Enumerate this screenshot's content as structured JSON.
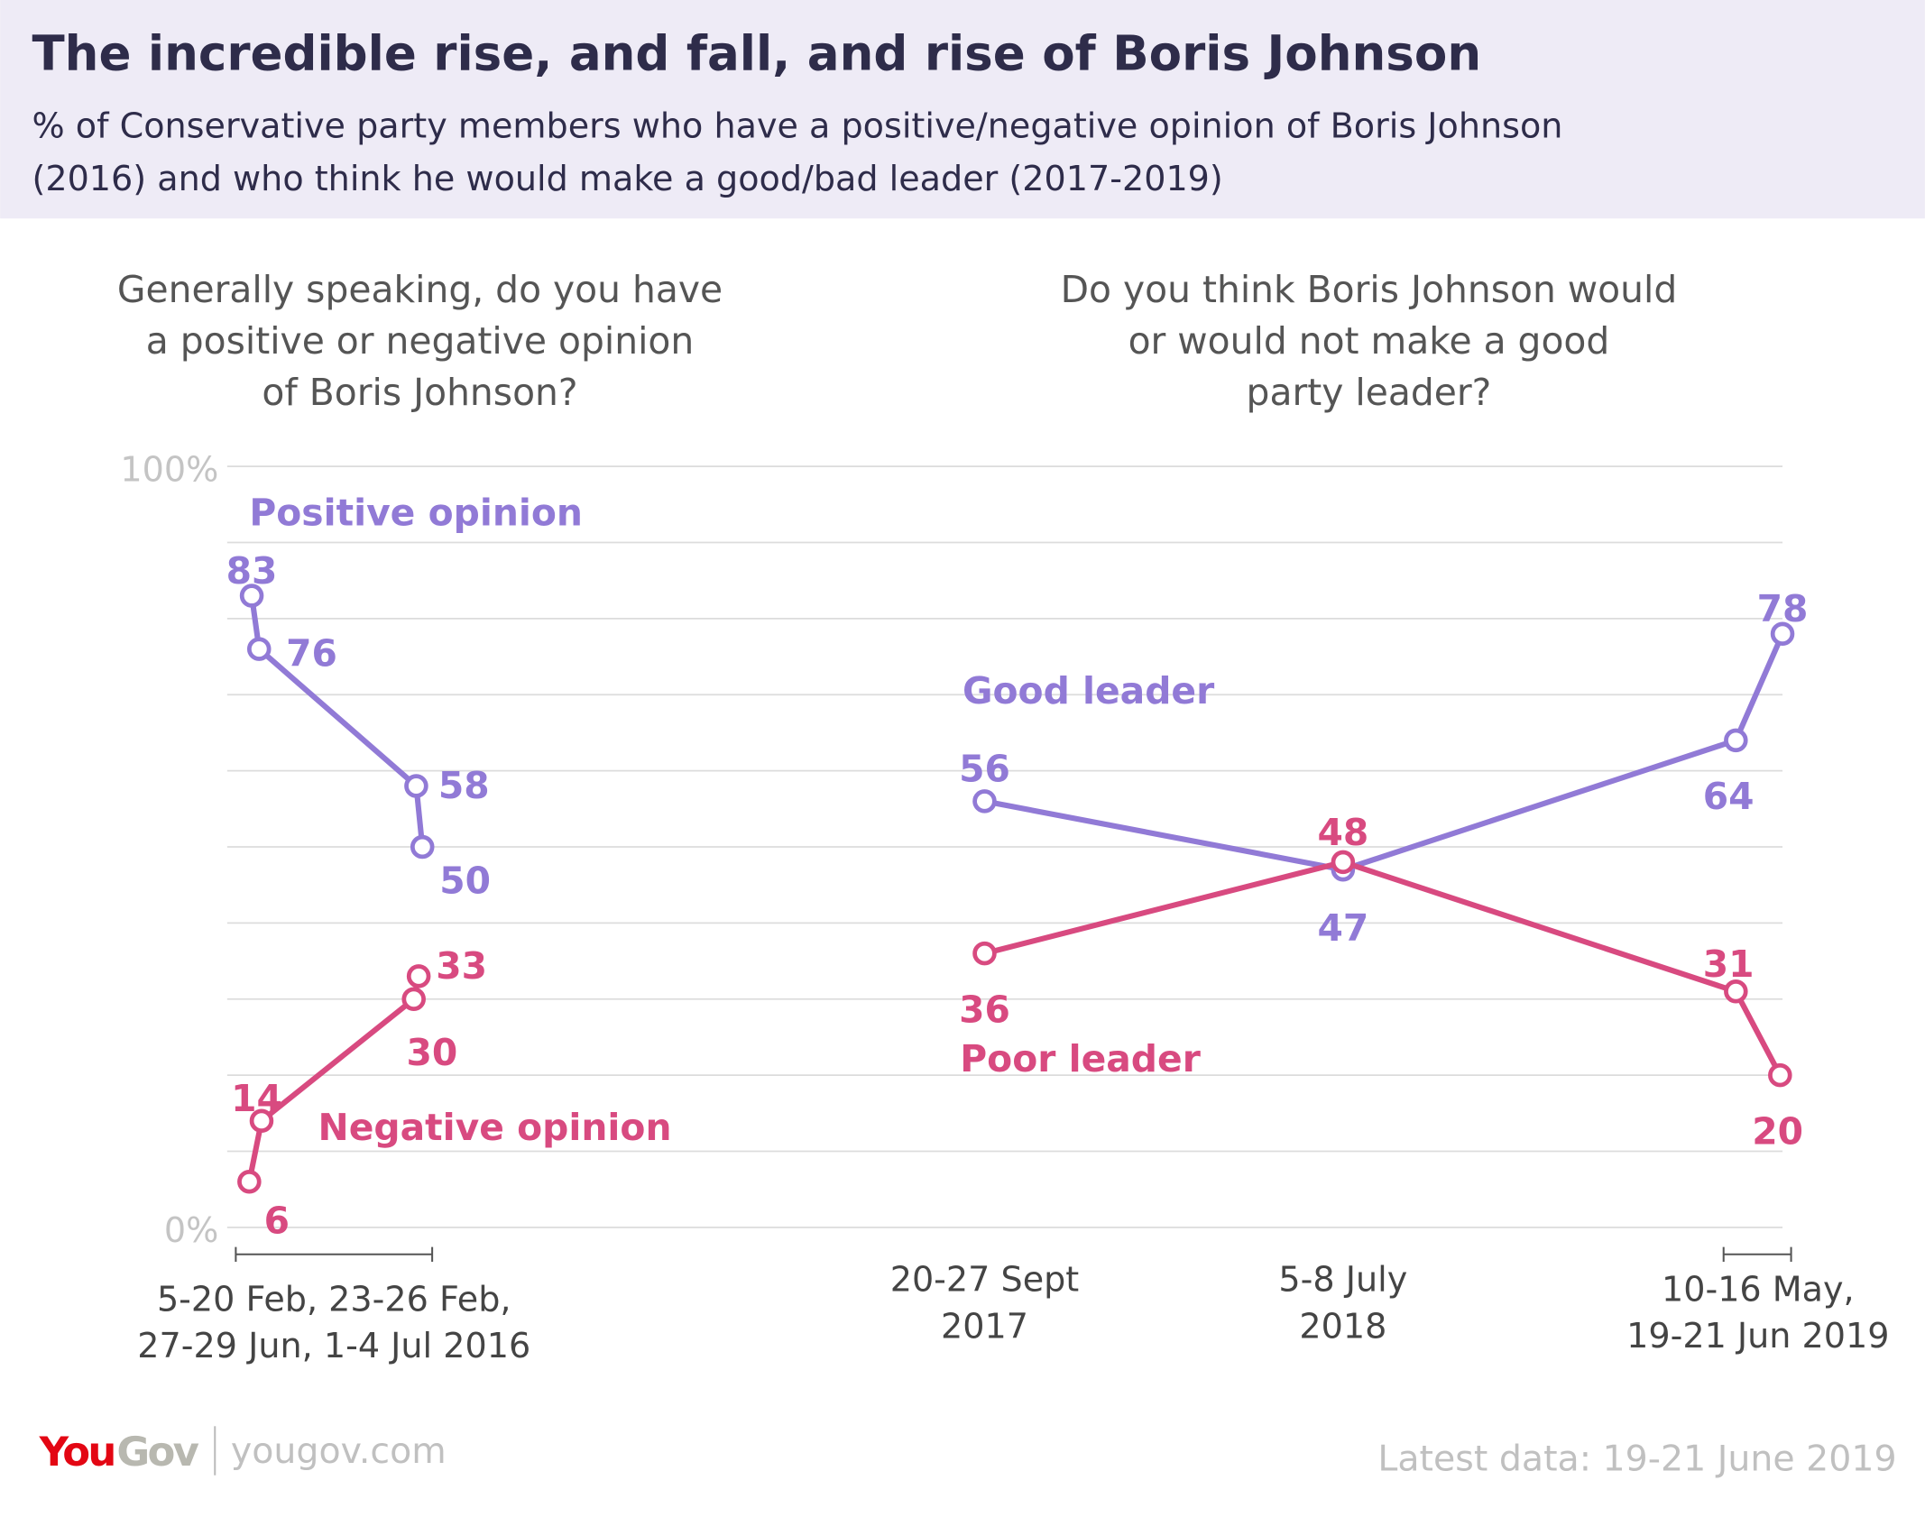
{
  "title": "The incredible rise, and fall, and rise of Boris Johnson",
  "subtitle": [
    "% of Conservative party members who have a positive/negative opinion of Boris Johnson",
    "(2016) and who think he would make a good/bad leader (2017-2019)"
  ],
  "colors": {
    "purple": "#917ad6",
    "pink": "#d84a80",
    "header_bg": "#eeebf6",
    "title": "#2e2c4a"
  },
  "footer": {
    "logo": "YouGov",
    "url": "yougov.com",
    "latest": "Latest data: 19-21 June 2019"
  },
  "chart_data": [
    {
      "type": "line",
      "question": [
        "Generally speaking, do you have",
        "a positive or negative opinion",
        "of Boris Johnson?"
      ],
      "ylim": [
        0,
        100
      ],
      "yticks": [
        "0%",
        "100%"
      ],
      "grid": true,
      "x_label": [
        "5-20 Feb, 23-26 Feb,",
        "27-29 Jun, 1-4 Jul 2016"
      ],
      "x": [
        "5-20 Feb 2016",
        "23-26 Feb 2016",
        "27-29 Jun 2016",
        "1-4 Jul 2016"
      ],
      "series": [
        {
          "name": "Positive opinion",
          "color": "#917ad6",
          "values": [
            83,
            76,
            58,
            50
          ]
        },
        {
          "name": "Negative opinion",
          "color": "#d84a80",
          "values": [
            6,
            14,
            30,
            33
          ]
        }
      ]
    },
    {
      "type": "line",
      "question": [
        "Do you think Boris Johnson would",
        "or would not make a good",
        "party leader?"
      ],
      "ylim": [
        0,
        100
      ],
      "grid": true,
      "x_labels": [
        [
          "20-27 Sept",
          "2017"
        ],
        [
          "5-8 July",
          "2018"
        ],
        [
          "10-16 May,",
          "19-21 Jun 2019"
        ]
      ],
      "x": [
        "20-27 Sept 2017",
        "5-8 July 2018",
        "10-16 May 2019",
        "19-21 Jun 2019"
      ],
      "series": [
        {
          "name": "Good leader",
          "color": "#917ad6",
          "values": [
            56,
            47,
            64,
            78
          ]
        },
        {
          "name": "Poor leader",
          "color": "#d84a80",
          "values": [
            36,
            48,
            31,
            20
          ]
        }
      ]
    }
  ]
}
